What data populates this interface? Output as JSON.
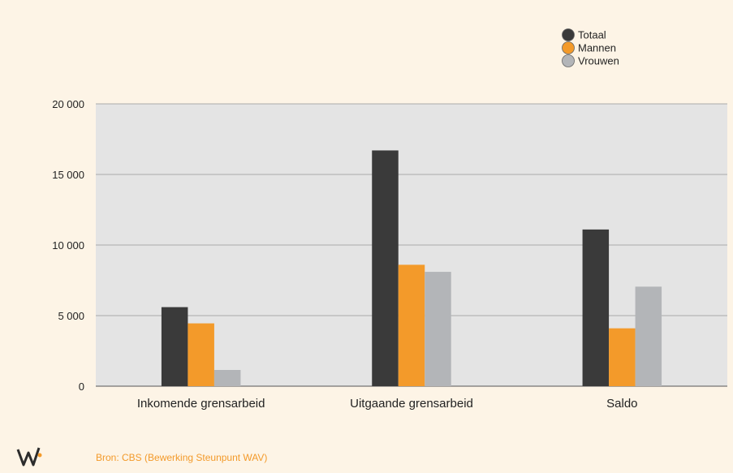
{
  "chart_data": {
    "type": "bar",
    "categories": [
      "Inkomende grensarbeid",
      "Uitgaande grensarbeid",
      "Saldo"
    ],
    "series": [
      {
        "name": "Totaal",
        "color": "#3a3a3a",
        "values": [
          5600,
          16700,
          11100
        ]
      },
      {
        "name": "Mannen",
        "color": "#f39a2a",
        "values": [
          4450,
          8600,
          4100
        ]
      },
      {
        "name": "Vrouwen",
        "color": "#b3b5b8",
        "values": [
          1150,
          8100,
          7050
        ]
      }
    ],
    "y_ticks": [
      "0",
      "5 000",
      "10 000",
      "15 000",
      "20 000"
    ],
    "ylim": [
      0,
      20000
    ],
    "grid": true,
    "legend_position": "top-right"
  },
  "source_text": "Bron: CBS (Bewerking Steunpunt WAV)",
  "logo_icon": "wav-logo-icon",
  "colors": {
    "background": "#fdf4e6",
    "plot_area": "#e4e4e4",
    "grid": "#aaaaaa"
  }
}
